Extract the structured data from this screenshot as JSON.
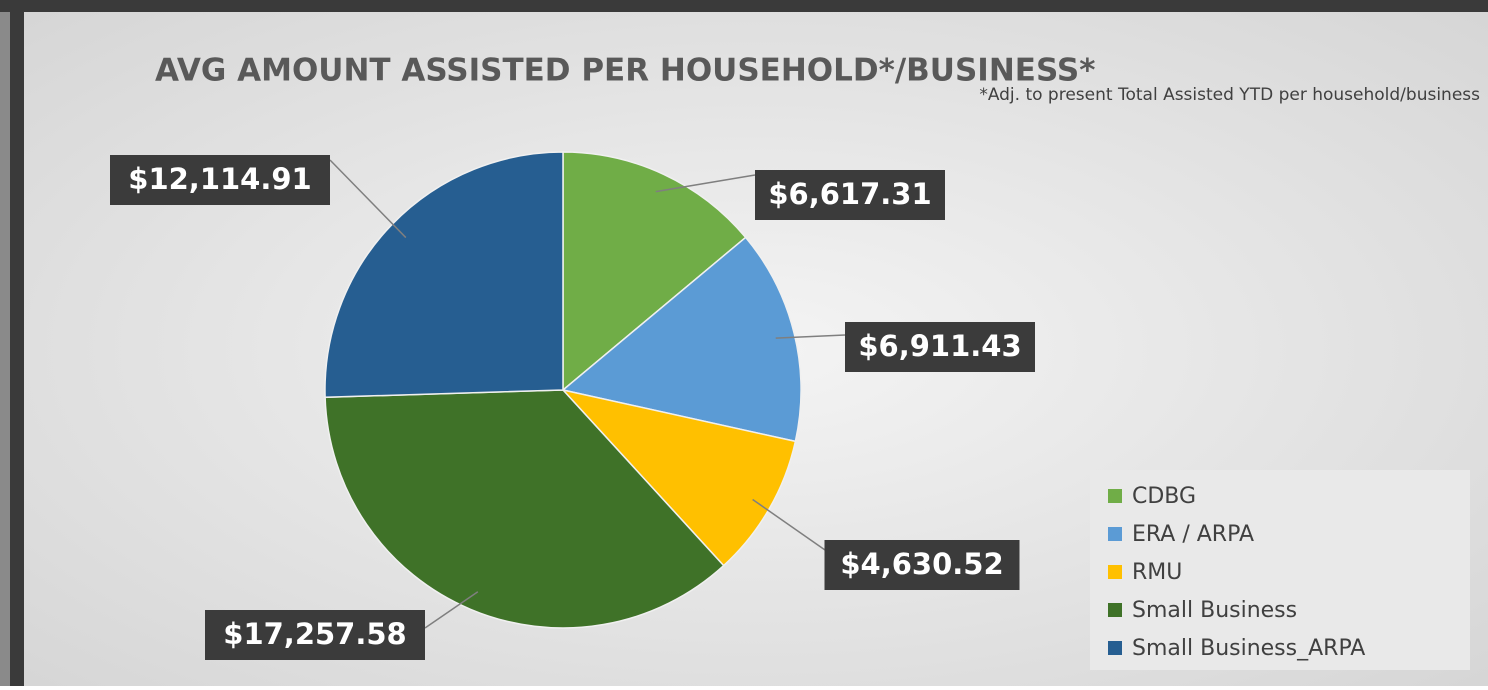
{
  "chart_data": {
    "type": "pie",
    "title": "AVG AMOUNT ASSISTED PER HOUSEHOLD*/BUSINESS*",
    "subtitle": "*Adj. to present Total Assisted YTD per household/business",
    "categories": [
      "CDBG",
      "ERA / ARPA",
      "RMU",
      "Small Business",
      "Small Business_ARPA"
    ],
    "values": [
      6617.31,
      6911.43,
      4630.52,
      17257.58,
      12114.91
    ],
    "value_labels": [
      "$6,617.31",
      "$6,911.43",
      "$4,630.52",
      "$17,257.58",
      "$12,114.91"
    ],
    "colors": [
      "#70ad47",
      "#5b9bd5",
      "#ffc000",
      "#3f7228",
      "#265e91"
    ],
    "legend": "bottom-right"
  }
}
